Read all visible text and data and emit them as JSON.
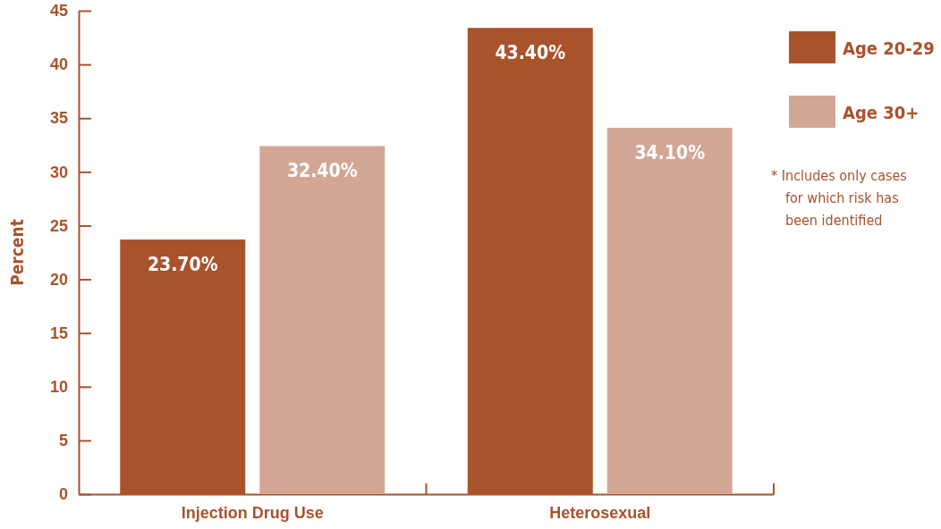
{
  "chart_data": {
    "type": "bar",
    "ylabel": "Percent",
    "categories": [
      "Injection Drug Use",
      "Heterosexual"
    ],
    "series": [
      {
        "name": "Age 20-29",
        "color": "#a8532c",
        "values": [
          23.7,
          43.4
        ],
        "value_labels": [
          "23.70%",
          "43.40%"
        ]
      },
      {
        "name": "Age 30+",
        "color": "#d2a695",
        "values": [
          32.4,
          34.1
        ],
        "value_labels": [
          "32.40%",
          "34.10%"
        ]
      }
    ],
    "ylim": [
      0,
      45
    ],
    "yticks": [
      0,
      5,
      10,
      15,
      20,
      25,
      30,
      35,
      40,
      45
    ],
    "grid": false,
    "legend": "right",
    "annotations": [
      "* Includes only cases for which risk has been identified"
    ]
  }
}
